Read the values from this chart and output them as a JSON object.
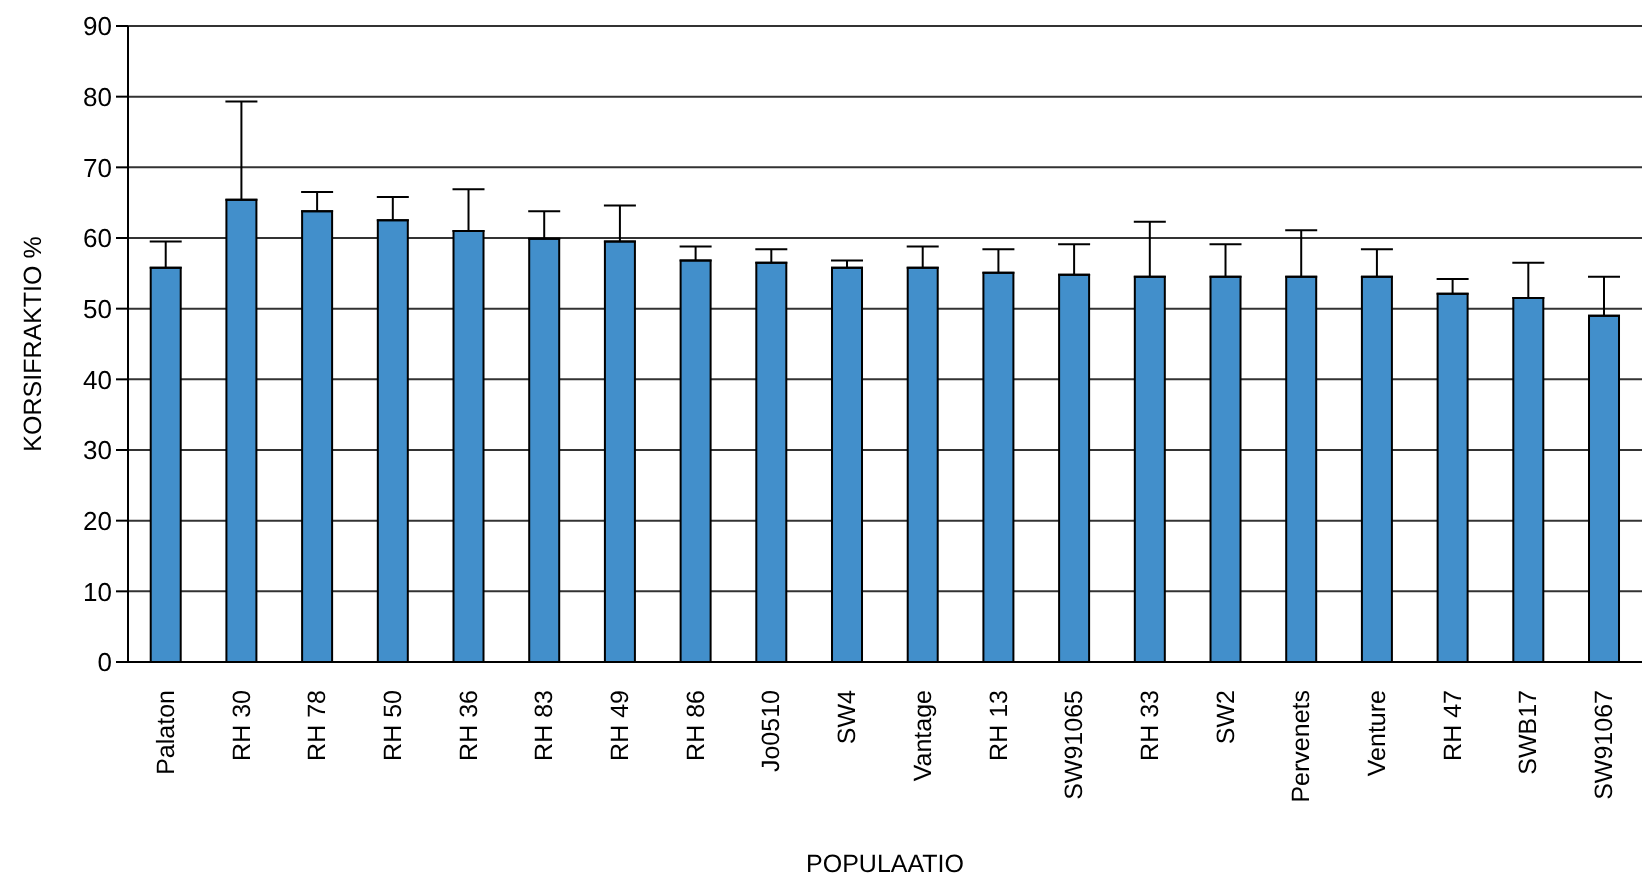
{
  "chart_data": {
    "type": "bar",
    "xlabel": "POPULAATIO",
    "ylabel": "KORSIFRAKTIO %",
    "categories": [
      "Palaton",
      "RH 30",
      "RH 78",
      "RH 50",
      "RH 36",
      "RH 83",
      "RH 49",
      "RH 86",
      "Jo0510",
      "SW4",
      "Vantage",
      "RH 13",
      "SW91065",
      "RH 33",
      "SW2",
      "Pervenets",
      "Venture",
      "RH 47",
      "SWB17",
      "SW91067"
    ],
    "values": [
      55.8,
      65.4,
      63.8,
      62.5,
      61.0,
      59.9,
      59.5,
      56.8,
      56.5,
      55.8,
      55.8,
      55.1,
      54.8,
      54.5,
      54.5,
      54.5,
      54.5,
      52.1,
      51.5,
      49.0
    ],
    "errors": [
      [
        55.8,
        59.5
      ],
      [
        65.4,
        79.3
      ],
      [
        63.8,
        66.5
      ],
      [
        62.5,
        65.8
      ],
      [
        61.0,
        66.9
      ],
      [
        59.9,
        63.8
      ],
      [
        59.5,
        64.6
      ],
      [
        56.8,
        58.8
      ],
      [
        56.5,
        58.4
      ],
      [
        55.8,
        56.8
      ],
      [
        55.8,
        58.8
      ],
      [
        55.1,
        58.4
      ],
      [
        54.8,
        59.1
      ],
      [
        54.5,
        62.3
      ],
      [
        54.5,
        59.1
      ],
      [
        54.5,
        61.1
      ],
      [
        54.5,
        58.4
      ],
      [
        52.1,
        54.2
      ],
      [
        51.5,
        56.5
      ],
      [
        49.0,
        54.5
      ]
    ],
    "color": "#428fcb",
    "ylim": [
      0,
      90
    ],
    "yticks": [
      0,
      10,
      20,
      30,
      40,
      50,
      60,
      70,
      80,
      90
    ],
    "grid": "y"
  }
}
